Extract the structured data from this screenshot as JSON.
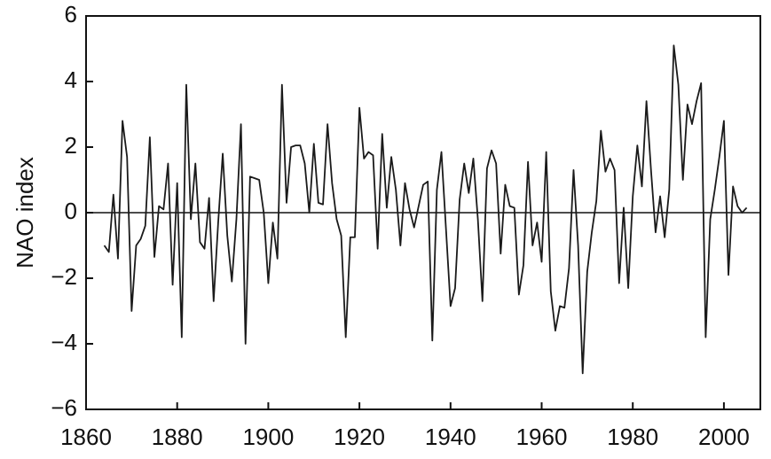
{
  "chart_data": {
    "type": "line",
    "ylabel": "NAO index",
    "x": [
      1864,
      1865,
      1866,
      1867,
      1868,
      1869,
      1870,
      1871,
      1872,
      1873,
      1874,
      1875,
      1876,
      1877,
      1878,
      1879,
      1880,
      1881,
      1882,
      1883,
      1884,
      1885,
      1886,
      1887,
      1888,
      1889,
      1890,
      1891,
      1892,
      1893,
      1894,
      1895,
      1896,
      1897,
      1898,
      1899,
      1900,
      1901,
      1902,
      1903,
      1904,
      1905,
      1906,
      1907,
      1908,
      1909,
      1910,
      1911,
      1912,
      1913,
      1914,
      1915,
      1916,
      1917,
      1918,
      1919,
      1920,
      1921,
      1922,
      1923,
      1924,
      1925,
      1926,
      1927,
      1928,
      1929,
      1930,
      1931,
      1932,
      1933,
      1934,
      1935,
      1936,
      1937,
      1938,
      1939,
      1940,
      1941,
      1942,
      1943,
      1944,
      1945,
      1946,
      1947,
      1948,
      1949,
      1950,
      1951,
      1952,
      1953,
      1954,
      1955,
      1956,
      1957,
      1958,
      1959,
      1960,
      1961,
      1962,
      1963,
      1964,
      1965,
      1966,
      1967,
      1968,
      1969,
      1970,
      1971,
      1972,
      1973,
      1974,
      1975,
      1976,
      1977,
      1978,
      1979,
      1980,
      1981,
      1982,
      1983,
      1984,
      1985,
      1986,
      1987,
      1988,
      1989,
      1990,
      1991,
      1992,
      1993,
      1994,
      1995,
      1996,
      1997,
      1998,
      1999,
      2000,
      2001,
      2002,
      2003,
      2004,
      2005
    ],
    "series": [
      {
        "name": "NAO index",
        "color": "#1a1a1a",
        "values": [
          -1.0,
          -1.2,
          0.55,
          -1.4,
          2.8,
          1.7,
          -3.0,
          -1.0,
          -0.8,
          -0.4,
          2.3,
          -1.35,
          0.2,
          0.1,
          1.5,
          -2.2,
          0.9,
          -3.8,
          3.9,
          -0.2,
          1.5,
          -0.9,
          -1.1,
          0.45,
          -2.7,
          -0.3,
          1.8,
          -0.7,
          -2.1,
          -0.2,
          2.7,
          -4.0,
          1.1,
          1.05,
          1.0,
          0.0,
          -2.15,
          -0.3,
          -1.4,
          3.9,
          0.3,
          2.0,
          2.05,
          2.05,
          1.5,
          0.0,
          2.1,
          0.3,
          0.25,
          2.7,
          0.9,
          -0.2,
          -0.7,
          -3.8,
          -0.75,
          -0.75,
          3.2,
          1.65,
          1.85,
          1.75,
          -1.1,
          2.4,
          0.15,
          1.7,
          0.7,
          -1.0,
          0.9,
          0.1,
          -0.45,
          0.2,
          0.85,
          0.95,
          -3.9,
          0.7,
          1.85,
          -0.5,
          -2.85,
          -2.3,
          0.4,
          1.5,
          0.6,
          1.65,
          -0.2,
          -2.7,
          1.35,
          1.9,
          1.5,
          -1.25,
          0.85,
          0.2,
          0.15,
          -2.5,
          -1.6,
          1.55,
          -1.0,
          -0.3,
          -1.5,
          1.85,
          -2.4,
          -3.6,
          -2.85,
          -2.9,
          -1.7,
          1.3,
          -1.0,
          -4.9,
          -1.8,
          -0.6,
          0.35,
          2.5,
          1.25,
          1.65,
          1.3,
          -2.15,
          0.15,
          -2.3,
          0.5,
          2.05,
          0.8,
          3.4,
          1.3,
          -0.6,
          0.5,
          -0.75,
          0.7,
          5.1,
          3.9,
          1.0,
          3.3,
          2.7,
          3.4,
          3.95,
          -3.8,
          -0.2,
          0.7,
          1.7,
          2.8,
          -1.9,
          0.8,
          0.2,
          0.0,
          0.15
        ]
      }
    ],
    "xlim": [
      1860,
      2008
    ],
    "xticks": [
      1860,
      1880,
      1900,
      1920,
      1940,
      1960,
      1980,
      2000
    ],
    "ylim": [
      -6,
      6
    ],
    "yticks": [
      {
        "value": -6,
        "label": "−6"
      },
      {
        "value": -4,
        "label": "−4"
      },
      {
        "value": -2,
        "label": "−2"
      },
      0,
      2,
      4,
      6
    ],
    "zero_line": true,
    "grid": false
  }
}
